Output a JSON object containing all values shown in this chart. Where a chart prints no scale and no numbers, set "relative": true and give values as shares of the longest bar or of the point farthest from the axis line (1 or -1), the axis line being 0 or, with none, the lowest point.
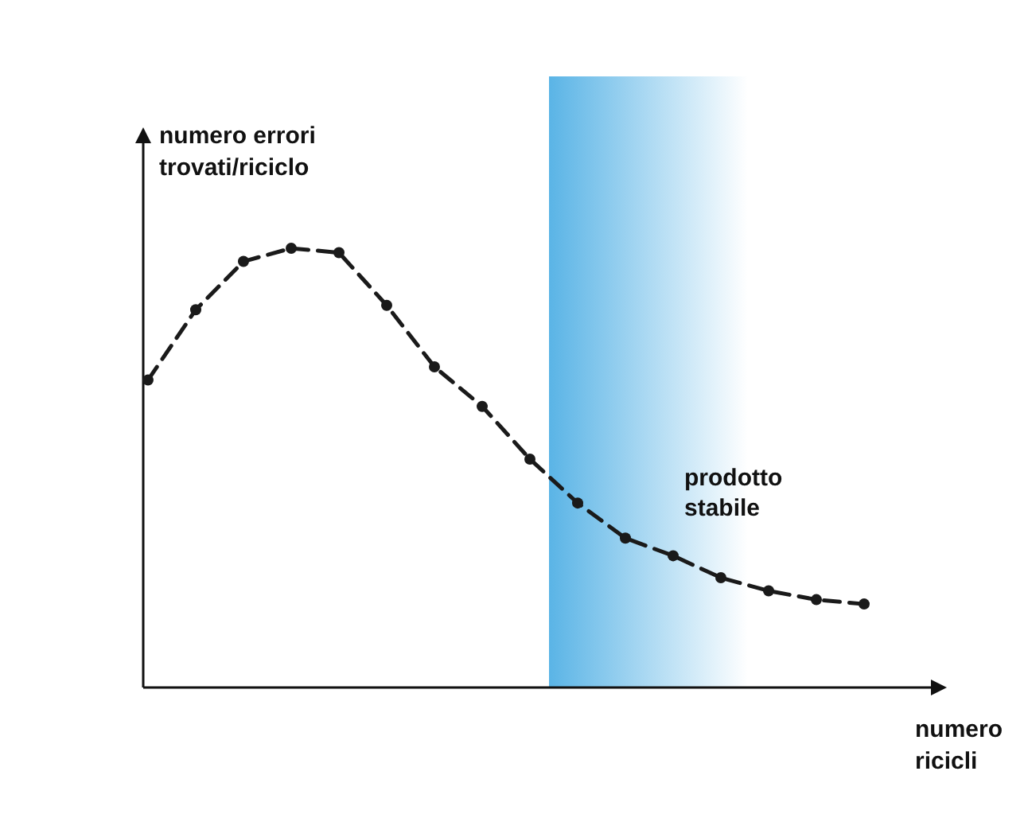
{
  "chart_data": {
    "type": "line",
    "relative": true,
    "xlabel": "numero ricicli",
    "ylabel": "numero errori trovati/riciclo",
    "categories": [
      null,
      null,
      null,
      null,
      null,
      null,
      null,
      null,
      null,
      null,
      null,
      null,
      null,
      null,
      null,
      null
    ],
    "marker": "circle",
    "line_style": "dashed",
    "series": [
      {
        "color": "#1a1a1a",
        "values": [
          0.7,
          0.86,
          0.97,
          1.0,
          0.99,
          0.87,
          0.73,
          0.64,
          0.52,
          0.42,
          0.34,
          0.3,
          0.25,
          0.22,
          0.2,
          0.19
        ]
      }
    ],
    "annotations": [
      "prodotto stabile"
    ]
  }
}
